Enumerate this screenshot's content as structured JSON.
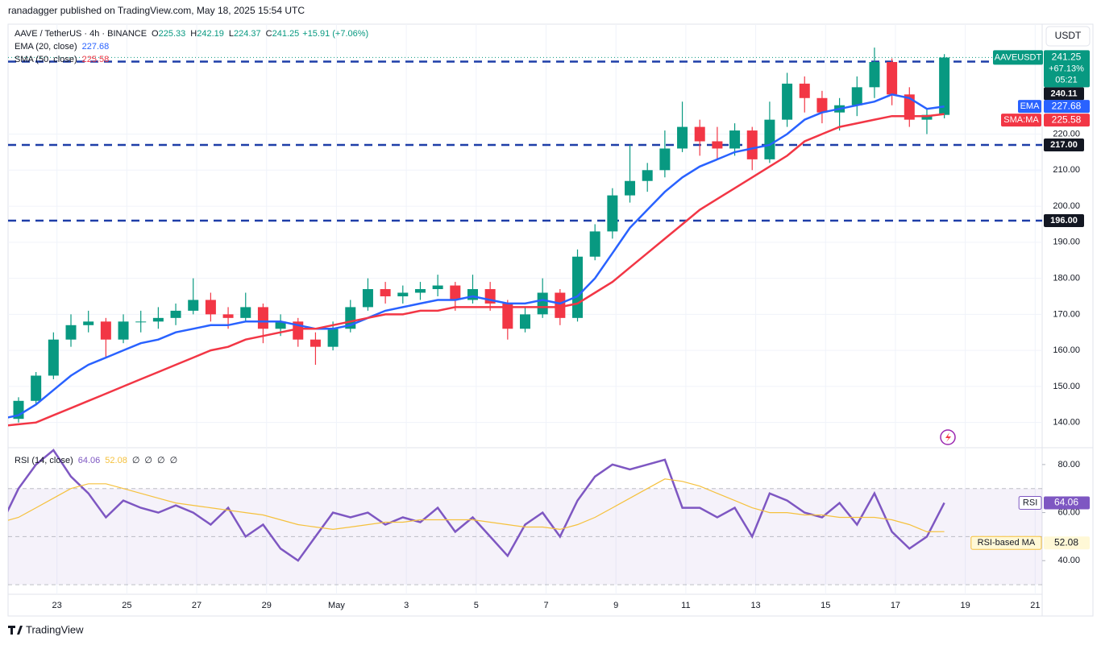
{
  "publisher": "ranadagger published on TradingView.com, May 18, 2025 15:54 UTC",
  "symbol": "AAVE / TetherUS · 4h · BINANCE",
  "ohlc_letters": [
    "O",
    "H",
    "L",
    "C"
  ],
  "change": "+15.91 (+7.06%)",
  "brand": "TradingView",
  "chart_data": [
    {
      "type": "candlestick",
      "unit": "USDT",
      "xlim": [
        0.4,
        59.6
      ],
      "xticks": [
        {
          "value": 3.2,
          "label": "23"
        },
        {
          "value": 7.2,
          "label": "25"
        },
        {
          "value": 11.2,
          "label": "27"
        },
        {
          "value": 15.2,
          "label": "29"
        },
        {
          "value": 19.2,
          "label": "May"
        },
        {
          "value": 23.2,
          "label": "3"
        },
        {
          "value": 27.2,
          "label": "5"
        },
        {
          "value": 31.2,
          "label": "7"
        },
        {
          "value": 35.2,
          "label": "9"
        },
        {
          "value": 39.2,
          "label": "11"
        },
        {
          "value": 43.2,
          "label": "13"
        },
        {
          "value": 47.2,
          "label": "15"
        },
        {
          "value": 51.2,
          "label": "17"
        },
        {
          "value": 55.2,
          "label": "19"
        },
        {
          "value": 59.2,
          "label": "21"
        }
      ],
      "ylim": [
        133,
        250.5
      ],
      "yticks": [
        {
          "value": 140,
          "label": "140.00"
        },
        {
          "value": 150,
          "label": "150.00"
        },
        {
          "value": 160,
          "label": "160.00"
        },
        {
          "value": 170,
          "label": "170.00"
        },
        {
          "value": 180,
          "label": "180.00"
        },
        {
          "value": 190,
          "label": "190.00"
        },
        {
          "value": 200,
          "label": "200.00"
        },
        {
          "value": 210,
          "label": "210.00"
        },
        {
          "value": 220,
          "label": "220.00"
        }
      ],
      "grid": true,
      "series": [
        {
          "name": "AAVEUSDT",
          "up_color": "#089981",
          "down_color": "#f23645",
          "change_label": "+67.13%",
          "countdown": "05:21",
          "ohlc": [
            [
              144,
              145.5,
              140,
              141
            ],
            [
              141,
              147,
              140,
              146
            ],
            [
              146,
              154,
              145,
              153
            ],
            [
              153,
              165,
              152,
              163
            ],
            [
              163,
              170,
              161,
              167
            ],
            [
              167,
              171,
              165,
              168
            ],
            [
              168,
              169,
              158,
              163
            ],
            [
              163,
              170,
              162,
              168
            ],
            [
              168,
              171,
              165,
              168
            ],
            [
              168,
              172,
              166,
              169
            ],
            [
              169,
              173,
              167,
              171
            ],
            [
              171,
              180,
              170,
              174
            ],
            [
              174,
              176,
              168,
              170
            ],
            [
              170,
              172,
              166,
              169
            ],
            [
              169,
              176,
              168,
              172
            ],
            [
              172,
              173,
              162,
              166
            ],
            [
              166,
              170,
              164,
              168
            ],
            [
              168,
              169,
              161,
              163
            ],
            [
              163,
              165,
              156,
              161
            ],
            [
              161,
              168,
              160,
              166
            ],
            [
              166,
              174,
              165,
              172
            ],
            [
              172,
              180,
              171,
              177
            ],
            [
              177,
              179,
              173,
              175
            ],
            [
              175,
              178,
              173,
              176
            ],
            [
              176,
              179,
              174,
              177
            ],
            [
              177,
              181,
              175,
              178
            ],
            [
              178,
              179,
              171,
              174
            ],
            [
              174,
              181,
              173,
              177
            ],
            [
              177,
              179,
              171,
              173
            ],
            [
              173,
              174,
              163,
              166
            ],
            [
              166,
              172,
              165,
              170
            ],
            [
              170,
              180,
              169,
              176
            ],
            [
              176,
              177,
              167,
              169
            ],
            [
              169,
              188,
              168,
              186
            ],
            [
              186,
              195,
              185,
              193
            ],
            [
              193,
              205,
              191,
              203
            ],
            [
              203,
              217,
              201,
              207
            ],
            [
              207,
              212,
              204,
              210
            ],
            [
              210,
              221,
              208,
              216
            ],
            [
              216,
              229,
              215,
              222
            ],
            [
              222,
              224,
              214,
              218
            ],
            [
              218,
              222,
              213,
              216
            ],
            [
              216,
              223,
              214,
              221
            ],
            [
              221,
              222,
              210,
              213
            ],
            [
              213,
              229,
              212,
              224
            ],
            [
              224,
              237,
              222,
              234
            ],
            [
              234,
              236,
              226,
              230
            ],
            [
              230,
              232,
              223,
              226
            ],
            [
              226,
              230,
              221,
              228
            ],
            [
              228,
              236,
              225,
              233
            ],
            [
              233,
              244,
              230,
              240
            ],
            [
              240,
              241,
              228,
              231
            ],
            [
              231,
              233,
              222,
              224
            ],
            [
              224,
              227,
              220,
              225.33
            ],
            [
              225.33,
              242.19,
              224.37,
              241.25
            ]
          ]
        },
        {
          "name": "EMA",
          "legend": "EMA (20, close)",
          "color": "#2962ff",
          "values": [
            141,
            142,
            145,
            149,
            153,
            156,
            158,
            160,
            162,
            163,
            165,
            166,
            167,
            167,
            168,
            168,
            168,
            167,
            166,
            166,
            167,
            169,
            171,
            172,
            173,
            174,
            174,
            175,
            174,
            173,
            173,
            174,
            173,
            175,
            180,
            187,
            194,
            199,
            204,
            208,
            211,
            213,
            215,
            216,
            217,
            220,
            224,
            226,
            227,
            228,
            229,
            231,
            230,
            227,
            227.68
          ]
        },
        {
          "name": "SMA:MA",
          "legend": "SMA (50, close)",
          "color": "#f23645",
          "values": [
            139,
            139.5,
            140,
            142,
            144,
            146,
            148,
            150,
            152,
            154,
            156,
            158,
            160,
            161,
            163,
            164,
            165,
            166,
            166,
            167,
            168,
            169,
            170,
            170,
            171,
            171,
            172,
            172,
            172,
            172,
            172,
            172,
            172,
            173,
            176,
            179,
            183,
            187,
            191,
            195,
            199,
            202,
            205,
            208,
            211,
            214,
            218,
            220,
            222,
            223,
            224,
            225,
            225,
            225,
            225.58
          ]
        }
      ],
      "levels": [
        {
          "value": 240.11,
          "label": "240.11"
        },
        {
          "value": 217,
          "label": "217.00"
        },
        {
          "value": 196,
          "label": "196.00"
        }
      ],
      "level_color": "#1e3ea8"
    },
    {
      "type": "line",
      "title": "RSI (14, close)",
      "ylim": [
        26,
        87
      ],
      "yticks": [
        {
          "value": 40,
          "label": "40.00"
        },
        {
          "value": 60,
          "label": "60.00"
        },
        {
          "value": 80,
          "label": "80.00"
        }
      ],
      "bands": [
        70,
        50,
        30
      ],
      "band_color": "#7e57c2",
      "extra_legend": [
        "∅",
        "∅",
        "∅",
        "∅"
      ],
      "series": [
        {
          "name": "RSI",
          "color": "#7e57c2",
          "values": [
            55,
            70,
            80,
            86,
            75,
            68,
            58,
            65,
            62,
            60,
            63,
            60,
            55,
            62,
            50,
            55,
            45,
            40,
            50,
            60,
            58,
            60,
            55,
            58,
            56,
            62,
            52,
            58,
            50,
            42,
            55,
            60,
            50,
            65,
            75,
            80,
            78,
            80,
            82,
            62,
            62,
            58,
            62,
            50,
            68,
            65,
            60,
            58,
            64,
            55,
            68,
            52,
            45,
            50,
            64.06
          ]
        },
        {
          "name": "RSI-based MA",
          "color": "#f5c13d",
          "values": [
            56,
            58,
            62,
            66,
            70,
            72,
            72,
            70,
            68,
            66,
            64,
            63,
            62,
            61,
            60,
            59,
            57,
            55,
            54,
            53,
            54,
            55,
            56,
            56,
            57,
            57,
            57,
            57,
            56,
            55,
            54,
            54,
            53,
            55,
            58,
            62,
            66,
            70,
            74,
            73,
            71,
            68,
            65,
            62,
            60,
            60,
            59,
            59,
            58,
            58,
            58,
            57,
            55,
            52,
            52.08
          ]
        }
      ]
    }
  ]
}
